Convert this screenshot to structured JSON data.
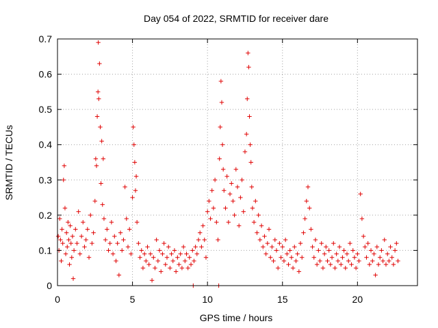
{
  "chart_data": {
    "type": "scatter",
    "title": "Day 054 of 2022, SRMTID for receiver dare",
    "xlabel": "GPS time / hours",
    "ylabel": "SRMTID / TECUs",
    "xlim": [
      0,
      24
    ],
    "ylim": [
      0,
      0.7
    ],
    "xticks": [
      0,
      5,
      10,
      15,
      20
    ],
    "xtick_labels": [
      "0",
      "5",
      "10",
      "15",
      "20"
    ],
    "yticks": [
      0,
      0.1,
      0.2,
      0.3,
      0.4,
      0.5,
      0.6,
      0.7
    ],
    "ytick_labels": [
      "0",
      "0.1",
      "0.2",
      "0.3",
      "0.4",
      "0.5",
      "0.6",
      "0.7"
    ],
    "grid": true,
    "marker": "+",
    "color": "#e00000",
    "series": [
      {
        "name": "SRMTID",
        "points": [
          [
            0.05,
            0.14
          ],
          [
            0.1,
            0.1
          ],
          [
            0.15,
            0.19
          ],
          [
            0.2,
            0.13
          ],
          [
            0.25,
            0.07
          ],
          [
            0.3,
            0.16
          ],
          [
            0.35,
            0.12
          ],
          [
            0.4,
            0.3
          ],
          [
            0.45,
            0.34
          ],
          [
            0.5,
            0.22
          ],
          [
            0.55,
            0.09
          ],
          [
            0.6,
            0.15
          ],
          [
            0.65,
            0.11
          ],
          [
            0.7,
            0.18
          ],
          [
            0.75,
            0.13
          ],
          [
            0.8,
            0.06
          ],
          [
            0.85,
            0.17
          ],
          [
            0.9,
            0.12
          ],
          [
            0.95,
            0.08
          ],
          [
            1.0,
            0.14
          ],
          [
            1.05,
            0.02
          ],
          [
            1.1,
            0.1
          ],
          [
            1.2,
            0.16
          ],
          [
            1.3,
            0.12
          ],
          [
            1.4,
            0.21
          ],
          [
            1.5,
            0.09
          ],
          [
            1.6,
            0.14
          ],
          [
            1.7,
            0.18
          ],
          [
            1.8,
            0.11
          ],
          [
            1.9,
            0.13
          ],
          [
            2.0,
            0.16
          ],
          [
            2.1,
            0.08
          ],
          [
            2.2,
            0.2
          ],
          [
            2.3,
            0.12
          ],
          [
            2.4,
            0.15
          ],
          [
            2.5,
            0.24
          ],
          [
            2.55,
            0.36
          ],
          [
            2.6,
            0.34
          ],
          [
            2.65,
            0.48
          ],
          [
            2.7,
            0.55
          ],
          [
            2.72,
            0.69
          ],
          [
            2.75,
            0.53
          ],
          [
            2.8,
            0.63
          ],
          [
            2.85,
            0.45
          ],
          [
            2.9,
            0.29
          ],
          [
            2.95,
            0.41
          ],
          [
            3.0,
            0.23
          ],
          [
            3.05,
            0.36
          ],
          [
            3.1,
            0.19
          ],
          [
            3.2,
            0.13
          ],
          [
            3.3,
            0.16
          ],
          [
            3.4,
            0.1
          ],
          [
            3.5,
            0.12
          ],
          [
            3.6,
            0.18
          ],
          [
            3.7,
            0.09
          ],
          [
            3.8,
            0.14
          ],
          [
            3.9,
            0.07
          ],
          [
            4.0,
            0.12
          ],
          [
            4.1,
            0.03
          ],
          [
            4.2,
            0.15
          ],
          [
            4.3,
            0.1
          ],
          [
            4.4,
            0.13
          ],
          [
            4.5,
            0.28
          ],
          [
            4.6,
            0.19
          ],
          [
            4.7,
            0.11
          ],
          [
            4.8,
            0.16
          ],
          [
            4.9,
            0.09
          ],
          [
            5.0,
            0.25
          ],
          [
            5.05,
            0.45
          ],
          [
            5.1,
            0.4
          ],
          [
            5.15,
            0.35
          ],
          [
            5.2,
            0.27
          ],
          [
            5.25,
            0.31
          ],
          [
            5.3,
            0.18
          ],
          [
            5.4,
            0.12
          ],
          [
            5.5,
            0.08
          ],
          [
            5.6,
            0.1
          ],
          [
            5.7,
            0.05
          ],
          [
            5.8,
            0.09
          ],
          [
            5.9,
            0.07
          ],
          [
            6.0,
            0.11
          ],
          [
            6.1,
            0.06
          ],
          [
            6.2,
            0.09
          ],
          [
            6.3,
            0.015
          ],
          [
            6.4,
            0.08
          ],
          [
            6.5,
            0.05
          ],
          [
            6.6,
            0.13
          ],
          [
            6.7,
            0.07
          ],
          [
            6.8,
            0.1
          ],
          [
            6.9,
            0.04
          ],
          [
            7.0,
            0.09
          ],
          [
            7.1,
            0.12
          ],
          [
            7.2,
            0.06
          ],
          [
            7.3,
            0.08
          ],
          [
            7.4,
            0.11
          ],
          [
            7.5,
            0.05
          ],
          [
            7.6,
            0.09
          ],
          [
            7.7,
            0.07
          ],
          [
            7.8,
            0.1
          ],
          [
            7.9,
            0.04
          ],
          [
            8.0,
            0.08
          ],
          [
            8.1,
            0.06
          ],
          [
            8.2,
            0.09
          ],
          [
            8.3,
            0.05
          ],
          [
            8.4,
            0.11
          ],
          [
            8.5,
            0.07
          ],
          [
            8.6,
            0.09
          ],
          [
            8.7,
            0.05
          ],
          [
            8.8,
            0.08
          ],
          [
            8.9,
            0.06
          ],
          [
            9.0,
            0.1
          ],
          [
            9.05,
            0.0
          ],
          [
            9.1,
            0.07
          ],
          [
            9.2,
            0.11
          ],
          [
            9.3,
            0.09
          ],
          [
            9.4,
            0.13
          ],
          [
            9.5,
            0.15
          ],
          [
            9.6,
            0.11
          ],
          [
            9.7,
            0.17
          ],
          [
            9.8,
            0.13
          ],
          [
            9.9,
            0.08
          ],
          [
            10.0,
            0.21
          ],
          [
            10.1,
            0.24
          ],
          [
            10.2,
            0.19
          ],
          [
            10.3,
            0.27
          ],
          [
            10.4,
            0.22
          ],
          [
            10.5,
            0.3
          ],
          [
            10.6,
            0.18
          ],
          [
            10.7,
            0.13
          ],
          [
            10.75,
            0.0
          ],
          [
            10.8,
            0.36
          ],
          [
            10.85,
            0.45
          ],
          [
            10.9,
            0.58
          ],
          [
            10.95,
            0.52
          ],
          [
            11.0,
            0.4
          ],
          [
            11.05,
            0.33
          ],
          [
            11.1,
            0.27
          ],
          [
            11.2,
            0.22
          ],
          [
            11.3,
            0.31
          ],
          [
            11.4,
            0.18
          ],
          [
            11.5,
            0.26
          ],
          [
            11.6,
            0.29
          ],
          [
            11.7,
            0.24
          ],
          [
            11.8,
            0.2
          ],
          [
            11.9,
            0.33
          ],
          [
            12.0,
            0.28
          ],
          [
            12.1,
            0.17
          ],
          [
            12.2,
            0.25
          ],
          [
            12.3,
            0.3
          ],
          [
            12.4,
            0.21
          ],
          [
            12.5,
            0.38
          ],
          [
            12.6,
            0.43
          ],
          [
            12.65,
            0.53
          ],
          [
            12.7,
            0.66
          ],
          [
            12.75,
            0.62
          ],
          [
            12.8,
            0.48
          ],
          [
            12.85,
            0.4
          ],
          [
            12.9,
            0.35
          ],
          [
            12.95,
            0.28
          ],
          [
            13.0,
            0.22
          ],
          [
            13.1,
            0.18
          ],
          [
            13.2,
            0.24
          ],
          [
            13.3,
            0.15
          ],
          [
            13.4,
            0.2
          ],
          [
            13.5,
            0.13
          ],
          [
            13.6,
            0.17
          ],
          [
            13.7,
            0.11
          ],
          [
            13.8,
            0.14
          ],
          [
            13.9,
            0.09
          ],
          [
            14.0,
            0.12
          ],
          [
            14.1,
            0.16
          ],
          [
            14.2,
            0.08
          ],
          [
            14.3,
            0.11
          ],
          [
            14.4,
            0.07
          ],
          [
            14.5,
            0.13
          ],
          [
            14.6,
            0.1
          ],
          [
            14.7,
            0.05
          ],
          [
            14.8,
            0.12
          ],
          [
            14.9,
            0.08
          ],
          [
            15.0,
            0.11
          ],
          [
            15.1,
            0.07
          ],
          [
            15.2,
            0.13
          ],
          [
            15.3,
            0.09
          ],
          [
            15.4,
            0.06
          ],
          [
            15.5,
            0.1
          ],
          [
            15.6,
            0.08
          ],
          [
            15.7,
            0.05
          ],
          [
            15.8,
            0.11
          ],
          [
            15.9,
            0.07
          ],
          [
            16.0,
            0.09
          ],
          [
            16.1,
            0.04
          ],
          [
            16.2,
            0.12
          ],
          [
            16.3,
            0.08
          ],
          [
            16.4,
            0.15
          ],
          [
            16.5,
            0.19
          ],
          [
            16.6,
            0.24
          ],
          [
            16.7,
            0.28
          ],
          [
            16.8,
            0.22
          ],
          [
            16.9,
            0.16
          ],
          [
            17.0,
            0.11
          ],
          [
            17.1,
            0.08
          ],
          [
            17.2,
            0.13
          ],
          [
            17.3,
            0.06
          ],
          [
            17.4,
            0.1
          ],
          [
            17.5,
            0.07
          ],
          [
            17.6,
            0.12
          ],
          [
            17.7,
            0.05
          ],
          [
            17.8,
            0.09
          ],
          [
            17.9,
            0.11
          ],
          [
            18.0,
            0.07
          ],
          [
            18.1,
            0.1
          ],
          [
            18.2,
            0.06
          ],
          [
            18.3,
            0.08
          ],
          [
            18.4,
            0.12
          ],
          [
            18.5,
            0.05
          ],
          [
            18.6,
            0.09
          ],
          [
            18.7,
            0.07
          ],
          [
            18.8,
            0.11
          ],
          [
            18.9,
            0.06
          ],
          [
            19.0,
            0.08
          ],
          [
            19.1,
            0.1
          ],
          [
            19.2,
            0.05
          ],
          [
            19.3,
            0.09
          ],
          [
            19.4,
            0.07
          ],
          [
            19.5,
            0.12
          ],
          [
            19.6,
            0.06
          ],
          [
            19.7,
            0.1
          ],
          [
            19.8,
            0.08
          ],
          [
            19.9,
            0.05
          ],
          [
            20.0,
            0.09
          ],
          [
            20.1,
            0.07
          ],
          [
            20.2,
            0.26
          ],
          [
            20.3,
            0.19
          ],
          [
            20.4,
            0.14
          ],
          [
            20.5,
            0.11
          ],
          [
            20.6,
            0.08
          ],
          [
            20.7,
            0.12
          ],
          [
            20.8,
            0.06
          ],
          [
            20.9,
            0.1
          ],
          [
            21.0,
            0.07
          ],
          [
            21.1,
            0.09
          ],
          [
            21.2,
            0.03
          ],
          [
            21.3,
            0.11
          ],
          [
            21.4,
            0.06
          ],
          [
            21.5,
            0.08
          ],
          [
            21.6,
            0.1
          ],
          [
            21.7,
            0.07
          ],
          [
            21.8,
            0.13
          ],
          [
            21.9,
            0.06
          ],
          [
            22.0,
            0.09
          ],
          [
            22.1,
            0.07
          ],
          [
            22.2,
            0.11
          ],
          [
            22.3,
            0.08
          ],
          [
            22.4,
            0.06
          ],
          [
            22.5,
            0.1
          ],
          [
            22.6,
            0.12
          ],
          [
            22.7,
            0.07
          ]
        ]
      }
    ]
  }
}
